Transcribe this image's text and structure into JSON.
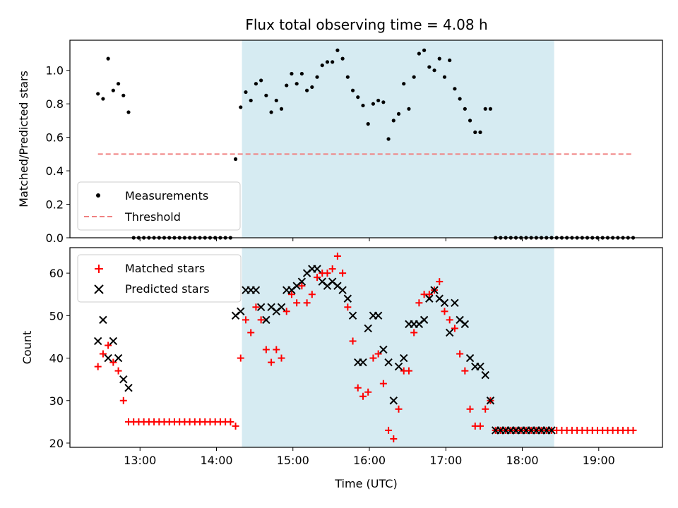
{
  "title": "Flux total observing time = 4.08 h",
  "colors": {
    "measurements": "#000000",
    "threshold": "#f08080",
    "matched": "#ff0000",
    "predicted": "#000000",
    "span": "#add8e6"
  },
  "chart_data": [
    {
      "type": "scatter",
      "ylabel": "Matched/Predicted stars",
      "xlabel": "",
      "xlim": [
        "12:05",
        "19:50"
      ],
      "ylim": [
        0,
        1.18
      ],
      "yticks": [
        "0.0",
        "0.2",
        "0.4",
        "0.6",
        "0.8",
        "1.0"
      ],
      "grid": false,
      "legend": "lower-left",
      "shaded_span": [
        "14:20",
        "18:25"
      ],
      "series": [
        {
          "name": "Measurements",
          "marker": "dot",
          "x": [
            "12:27",
            "12:31",
            "12:35",
            "12:39",
            "12:43",
            "12:47",
            "12:51",
            "12:55",
            "12:59",
            "13:03",
            "13:07",
            "13:11",
            "13:15",
            "13:19",
            "13:23",
            "13:27",
            "13:31",
            "13:35",
            "13:39",
            "13:43",
            "13:47",
            "13:51",
            "13:55",
            "13:59",
            "14:03",
            "14:07",
            "14:11",
            "14:15",
            "14:19",
            "14:23",
            "14:27",
            "14:31",
            "14:35",
            "14:39",
            "14:43",
            "14:47",
            "14:51",
            "14:55",
            "14:59",
            "15:03",
            "15:07",
            "15:11",
            "15:15",
            "15:19",
            "15:23",
            "15:27",
            "15:31",
            "15:35",
            "15:39",
            "15:43",
            "15:47",
            "15:51",
            "15:55",
            "15:59",
            "16:03",
            "16:07",
            "16:11",
            "16:15",
            "16:19",
            "16:23",
            "16:27",
            "16:31",
            "16:35",
            "16:39",
            "16:43",
            "16:47",
            "16:51",
            "16:55",
            "16:59",
            "17:03",
            "17:07",
            "17:11",
            "17:15",
            "17:19",
            "17:23",
            "17:27",
            "17:31",
            "17:35",
            "17:39",
            "17:43",
            "17:47",
            "17:51",
            "17:55",
            "17:59",
            "18:03",
            "18:07",
            "18:11",
            "18:15",
            "18:19",
            "18:23",
            "18:27",
            "18:31",
            "18:35",
            "18:39",
            "18:43",
            "18:47",
            "18:51",
            "18:55",
            "18:59",
            "19:03",
            "19:07",
            "19:11",
            "19:15",
            "19:19",
            "19:23",
            "19:27"
          ],
          "y": [
            0.86,
            0.83,
            1.07,
            0.88,
            0.92,
            0.85,
            0.75,
            0.0,
            0.0,
            0.0,
            0.0,
            0.0,
            0.0,
            0.0,
            0.0,
            0.0,
            0.0,
            0.0,
            0.0,
            0.0,
            0.0,
            0.0,
            0.0,
            0.0,
            0.0,
            0.0,
            0.0,
            0.47,
            0.78,
            0.87,
            0.82,
            0.92,
            0.94,
            0.85,
            0.75,
            0.82,
            0.77,
            0.91,
            0.98,
            0.92,
            0.98,
            0.88,
            0.9,
            0.96,
            1.03,
            1.05,
            1.05,
            1.12,
            1.07,
            0.96,
            0.88,
            0.84,
            0.79,
            0.68,
            0.8,
            0.82,
            0.81,
            0.59,
            0.7,
            0.74,
            0.92,
            0.77,
            0.96,
            1.1,
            1.12,
            1.02,
            1.0,
            1.07,
            0.96,
            1.06,
            0.89,
            0.83,
            0.77,
            0.7,
            0.63,
            0.63,
            0.77,
            0.77,
            0.0,
            0.0,
            0.0,
            0.0,
            0.0,
            0.0,
            0.0,
            0.0,
            0.0,
            0.0,
            0.0,
            0.0,
            0.0,
            0.0,
            0.0,
            0.0,
            0.0,
            0.0,
            0.0,
            0.0,
            0.0,
            0.0,
            0.0,
            0.0,
            0.0,
            0.0,
            0.0,
            0.0
          ]
        },
        {
          "name": "Threshold",
          "marker": "dashed-line",
          "x": [
            "12:27",
            "19:27"
          ],
          "y": [
            0.5,
            0.5
          ]
        }
      ]
    },
    {
      "type": "scatter",
      "ylabel": "Count",
      "xlabel": "Time (UTC)",
      "xlim": [
        "12:05",
        "19:50"
      ],
      "ylim": [
        19,
        66
      ],
      "yticks": [
        "20",
        "30",
        "40",
        "50",
        "60"
      ],
      "xticks": [
        "13:00",
        "14:00",
        "15:00",
        "16:00",
        "17:00",
        "18:00",
        "19:00"
      ],
      "grid": false,
      "legend": "upper-left",
      "shaded_span": [
        "14:20",
        "18:25"
      ],
      "series": [
        {
          "name": "Matched stars",
          "marker": "plus",
          "x": [
            "12:27",
            "12:31",
            "12:35",
            "12:39",
            "12:43",
            "12:47",
            "12:51",
            "12:55",
            "12:59",
            "13:03",
            "13:07",
            "13:11",
            "13:15",
            "13:19",
            "13:23",
            "13:27",
            "13:31",
            "13:35",
            "13:39",
            "13:43",
            "13:47",
            "13:51",
            "13:55",
            "13:59",
            "14:03",
            "14:07",
            "14:11",
            "14:15",
            "14:19",
            "14:23",
            "14:27",
            "14:31",
            "14:35",
            "14:39",
            "14:43",
            "14:47",
            "14:51",
            "14:55",
            "14:59",
            "15:03",
            "15:07",
            "15:11",
            "15:15",
            "15:19",
            "15:23",
            "15:27",
            "15:31",
            "15:35",
            "15:39",
            "15:43",
            "15:47",
            "15:51",
            "15:55",
            "15:59",
            "16:03",
            "16:07",
            "16:11",
            "16:15",
            "16:19",
            "16:23",
            "16:27",
            "16:31",
            "16:35",
            "16:39",
            "16:43",
            "16:47",
            "16:51",
            "16:55",
            "16:59",
            "17:03",
            "17:07",
            "17:11",
            "17:15",
            "17:19",
            "17:23",
            "17:27",
            "17:31",
            "17:35",
            "17:39",
            "17:43",
            "17:47",
            "17:51",
            "17:55",
            "17:59",
            "18:03",
            "18:07",
            "18:11",
            "18:15",
            "18:19",
            "18:23",
            "18:27",
            "18:31",
            "18:35",
            "18:39",
            "18:43",
            "18:47",
            "18:51",
            "18:55",
            "18:59",
            "19:03",
            "19:07",
            "19:11",
            "19:15",
            "19:19",
            "19:23",
            "19:27"
          ],
          "y": [
            38,
            41,
            43,
            39,
            37,
            30,
            25,
            25,
            25,
            25,
            25,
            25,
            25,
            25,
            25,
            25,
            25,
            25,
            25,
            25,
            25,
            25,
            25,
            25,
            25,
            25,
            25,
            24,
            40,
            49,
            46,
            52,
            49,
            42,
            39,
            42,
            40,
            51,
            55,
            53,
            57,
            53,
            55,
            59,
            60,
            60,
            61,
            64,
            60,
            52,
            44,
            33,
            31,
            32,
            40,
            41,
            34,
            23,
            21,
            28,
            37,
            37,
            46,
            53,
            55,
            55,
            56,
            58,
            51,
            49,
            47,
            41,
            37,
            28,
            24,
            24,
            28,
            30,
            23,
            23,
            23,
            23,
            23,
            23,
            23,
            23,
            23,
            23,
            23,
            23,
            23,
            23,
            23,
            23,
            23,
            23,
            23,
            23,
            23,
            23,
            23,
            23,
            23,
            23,
            23,
            23
          ]
        },
        {
          "name": "Predicted stars",
          "marker": "x",
          "x": [
            "12:27",
            "12:31",
            "12:35",
            "12:39",
            "12:43",
            "12:47",
            "12:51",
            "14:15",
            "14:19",
            "14:23",
            "14:27",
            "14:31",
            "14:35",
            "14:39",
            "14:43",
            "14:47",
            "14:51",
            "14:55",
            "14:59",
            "15:03",
            "15:07",
            "15:11",
            "15:15",
            "15:19",
            "15:23",
            "15:27",
            "15:31",
            "15:35",
            "15:39",
            "15:43",
            "15:47",
            "15:51",
            "15:55",
            "15:59",
            "16:03",
            "16:07",
            "16:11",
            "16:15",
            "16:19",
            "16:23",
            "16:27",
            "16:31",
            "16:35",
            "16:39",
            "16:43",
            "16:47",
            "16:51",
            "16:55",
            "16:59",
            "17:03",
            "17:07",
            "17:11",
            "17:15",
            "17:19",
            "17:23",
            "17:27",
            "17:31",
            "17:35",
            "17:39",
            "17:43",
            "17:47",
            "17:51",
            "17:55",
            "17:59",
            "18:03",
            "18:07",
            "18:11",
            "18:15",
            "18:19",
            "18:23"
          ],
          "y": [
            44,
            49,
            40,
            44,
            40,
            35,
            33,
            50,
            51,
            56,
            56,
            56,
            52,
            49,
            52,
            51,
            52,
            56,
            56,
            57,
            58,
            60,
            61,
            61,
            58,
            57,
            58,
            57,
            56,
            54,
            50,
            39,
            39,
            47,
            50,
            50,
            42,
            39,
            30,
            38,
            40,
            48,
            48,
            48,
            49,
            54,
            56,
            54,
            53,
            46,
            53,
            49,
            48,
            40,
            38,
            38,
            36,
            30,
            23,
            23,
            23,
            23,
            23,
            23,
            23,
            23,
            23,
            23,
            23,
            23
          ]
        }
      ]
    }
  ]
}
